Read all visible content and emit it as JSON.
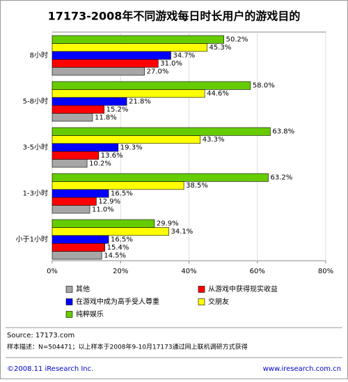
{
  "chart_data": {
    "type": "hbar",
    "title": "17173-2008年不同游戏每日时长用户的游戏目的",
    "categories": [
      "8小时",
      "5-8小时",
      "3-5小时",
      "1-3小时",
      "小于1小时"
    ],
    "series": [
      {
        "name": "其他",
        "color": "#a6a6a6",
        "values": [
          27.0,
          11.8,
          10.2,
          11.0,
          14.5
        ],
        "value_labels": [
          "27.0%",
          "11.8%",
          "10.2%",
          "11.0%",
          "14.5%"
        ]
      },
      {
        "name": "从游戏中获得现实收益",
        "color": "#ff0000",
        "values": [
          31.0,
          15.2,
          13.6,
          12.9,
          15.4
        ],
        "value_labels": [
          "31.0%",
          "15.2%",
          "13.6%",
          "12.9%",
          "15.4%"
        ]
      },
      {
        "name": "在游戏中成为高手受人尊重",
        "color": "#0000ff",
        "values": [
          34.7,
          21.8,
          19.3,
          16.5,
          16.5
        ],
        "value_labels": [
          "34.7%",
          "21.8%",
          "19.3%",
          "16.5%",
          "16.5%"
        ]
      },
      {
        "name": "交朋友",
        "color": "#ffff00",
        "values": [
          45.3,
          44.6,
          43.3,
          38.5,
          34.1
        ],
        "value_labels": [
          "45.3%",
          "44.6%",
          "43.3%",
          "38.5%",
          "34.1%"
        ]
      },
      {
        "name": "纯粹娱乐",
        "color": "#66cc00",
        "values": [
          50.2,
          58.0,
          63.8,
          63.2,
          29.9
        ],
        "value_labels": [
          "50.2%",
          "58.0%",
          "63.8%",
          "63.2%",
          "29.9%"
        ]
      }
    ],
    "xlim": [
      0,
      80
    ],
    "xticks": [
      {
        "value": 0,
        "label": "0%"
      },
      {
        "value": 20,
        "label": "20%"
      },
      {
        "value": 40,
        "label": "40%"
      },
      {
        "value": 60,
        "label": "60%"
      },
      {
        "value": 80,
        "label": "80%"
      }
    ],
    "grid": true
  },
  "source": "Source:  17173.com",
  "note": "样本描述：N=504471；以上样本于2008年9-10月17173通过网上联机调研方式获得",
  "footer_left": "©2008.11 iResearch Inc.",
  "footer_right": "www.iresearch.com.cn"
}
